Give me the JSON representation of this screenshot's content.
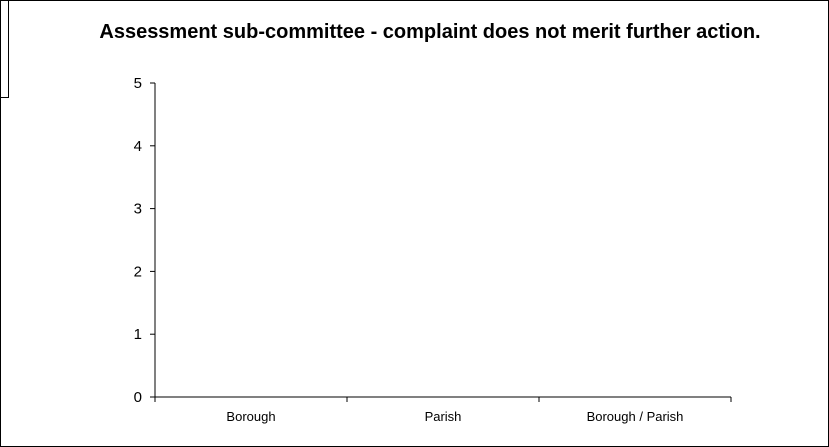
{
  "chart_data": {
    "type": "bar",
    "title": "Assessment sub-committee - complaint does not merit further action.",
    "xlabel": "",
    "ylabel": "",
    "categories": [
      "Borough",
      "Parish",
      "Borough / Parish"
    ],
    "values": [
      0,
      0,
      0
    ],
    "ylim": [
      0,
      5
    ],
    "yticks": [
      0,
      1,
      2,
      3,
      4,
      5
    ],
    "grid": false,
    "legend": "none"
  }
}
